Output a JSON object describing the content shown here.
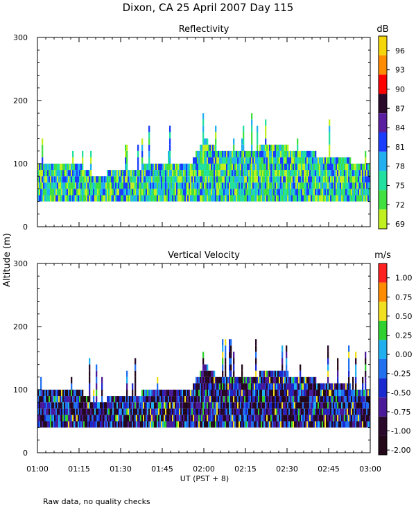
{
  "header": {
    "title": "Dixon, CA 25 April 2007  Day 115",
    "footnote": "Raw data, no quality checks",
    "shared_ylabel": "Altitude (m)",
    "shared_xlabel": "UT  (PST + 8)"
  },
  "chart_data": [
    {
      "type": "heatmap",
      "title": "Reflectivity",
      "ylabel": "Altitude (m)",
      "xlabel": "",
      "ylim": [
        0,
        300
      ],
      "yticks": [
        "0",
        "100",
        "200",
        "300"
      ],
      "xlim": [
        "01:00",
        "03:00"
      ],
      "xticks": [
        "01:00",
        "01:15",
        "01:30",
        "01:45",
        "02:00",
        "02:15",
        "02:30",
        "02:45",
        "03:00"
      ],
      "colorbar": {
        "unit": "dB",
        "labels": [
          "96",
          "93",
          "90",
          "87",
          "84",
          "81",
          "78",
          "75",
          "72",
          "69"
        ],
        "colors": [
          "#f5d60a",
          "#ff8c00",
          "#ff0000",
          "#2a0a2a",
          "#5a1fa0",
          "#1a3cff",
          "#22b0f0",
          "#22e0a0",
          "#40e040",
          "#c0f020"
        ]
      },
      "echo_base_m": 40,
      "echo_tops_m": [
        {
          "time": "01:00",
          "top": 100
        },
        {
          "time": "01:15",
          "top": 100
        },
        {
          "time": "01:20",
          "top": 80
        },
        {
          "time": "01:30",
          "top": 90
        },
        {
          "time": "01:45",
          "top": 100
        },
        {
          "time": "01:55",
          "top": 100
        },
        {
          "time": "02:00",
          "top": 140
        },
        {
          "time": "02:05",
          "top": 120
        },
        {
          "time": "02:15",
          "top": 120
        },
        {
          "time": "02:25",
          "top": 130
        },
        {
          "time": "02:35",
          "top": 120
        },
        {
          "time": "02:45",
          "top": 110
        },
        {
          "time": "03:00",
          "top": 100
        }
      ]
    },
    {
      "type": "heatmap",
      "title": "Vertical Velocity",
      "ylabel": "Altitude (m)",
      "xlabel": "UT  (PST + 8)",
      "ylim": [
        0,
        300
      ],
      "yticks": [
        "0",
        "100",
        "200",
        "300"
      ],
      "xlim": [
        "01:00",
        "03:00"
      ],
      "xticks": [
        "01:00",
        "01:15",
        "01:30",
        "01:45",
        "02:00",
        "02:15",
        "02:30",
        "02:45",
        "03:00"
      ],
      "colorbar": {
        "unit": "m/s",
        "labels": [
          "1.00",
          "0.75",
          "0.50",
          "0.25",
          "0.00",
          "-0.25",
          "-0.50",
          "-0.75",
          "-1.00",
          "-2.00"
        ],
        "colors": [
          "#ff2020",
          "#ff8c00",
          "#f0e020",
          "#30d030",
          "#20b0f0",
          "#2070f0",
          "#1a2ad0",
          "#4a1a98",
          "#2a0a2a",
          "#220818"
        ]
      },
      "echo_base_m": 40,
      "echo_tops_m": [
        {
          "time": "01:00",
          "top": 100
        },
        {
          "time": "01:15",
          "top": 100
        },
        {
          "time": "01:20",
          "top": 80
        },
        {
          "time": "01:30",
          "top": 90
        },
        {
          "time": "01:45",
          "top": 100
        },
        {
          "time": "01:55",
          "top": 100
        },
        {
          "time": "02:00",
          "top": 140
        },
        {
          "time": "02:05",
          "top": 120
        },
        {
          "time": "02:15",
          "top": 120
        },
        {
          "time": "02:25",
          "top": 130
        },
        {
          "time": "02:35",
          "top": 120
        },
        {
          "time": "02:45",
          "top": 110
        },
        {
          "time": "03:00",
          "top": 100
        }
      ]
    }
  ]
}
